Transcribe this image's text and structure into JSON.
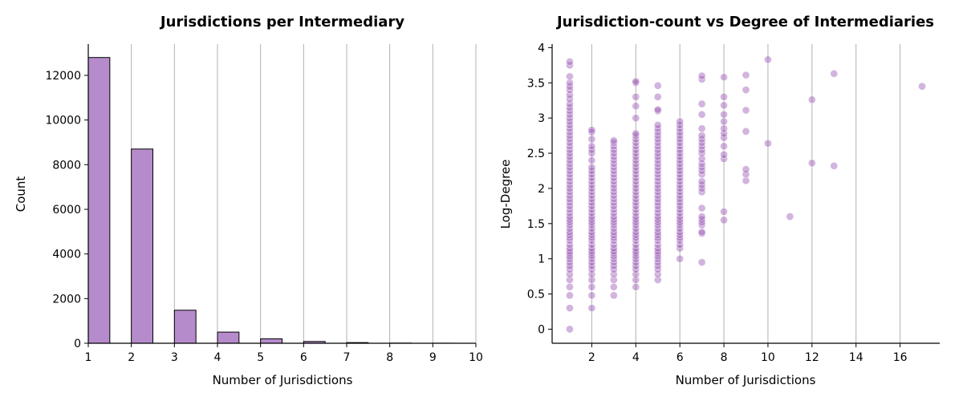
{
  "colors": {
    "bar_fill": "#b68bcb",
    "bar_stroke": "#000000",
    "point_fill": "#9b59b6",
    "grid": "#b0b0b0"
  },
  "chart_data": [
    {
      "type": "bar",
      "title": "Jurisdictions per Intermediary",
      "xlabel": "Number of Jurisdictions",
      "ylabel": "Count",
      "xlim": [
        1,
        10
      ],
      "ylim": [
        0,
        13400
      ],
      "xticks": [
        1,
        2,
        3,
        4,
        5,
        6,
        7,
        8,
        9,
        10
      ],
      "yticks": [
        0,
        2000,
        4000,
        6000,
        8000,
        10000,
        12000
      ],
      "grid": "vertical",
      "bin_width": 0.5,
      "bins": [
        {
          "start": 1,
          "value": 12800
        },
        {
          "start": 2,
          "value": 8700
        },
        {
          "start": 3,
          "value": 1480
        },
        {
          "start": 4,
          "value": 500
        },
        {
          "start": 5,
          "value": 200
        },
        {
          "start": 6,
          "value": 80
        },
        {
          "start": 7,
          "value": 30
        },
        {
          "start": 8,
          "value": 8
        },
        {
          "start": 9,
          "value": 3
        }
      ]
    },
    {
      "type": "scatter",
      "title": "Jurisdiction-count vs Degree of Intermediaries",
      "xlabel": "Number of Jurisdictions",
      "ylabel": "Log-Degree",
      "xlim": [
        0.2,
        17.8
      ],
      "ylim": [
        -0.2,
        4.05
      ],
      "xticks": [
        2,
        4,
        6,
        8,
        10,
        12,
        14,
        16
      ],
      "yticks": [
        0.0,
        0.5,
        1.0,
        1.5,
        2.0,
        2.5,
        3.0,
        3.5,
        4.0
      ],
      "grid": "vertical",
      "points": [
        {
          "x": 1,
          "y": [
            0.0,
            0.3,
            0.48,
            0.6,
            0.7,
            0.78,
            0.85,
            0.9,
            0.95,
            1.0,
            1.04,
            1.08,
            1.11,
            1.15,
            1.2,
            1.26,
            1.3,
            1.34,
            1.38,
            1.43,
            1.48,
            1.52,
            1.56,
            1.6,
            1.65,
            1.7,
            1.75,
            1.8,
            1.85,
            1.9,
            1.95,
            2.0,
            2.05,
            2.1,
            2.15,
            2.2,
            2.25,
            2.3,
            2.35,
            2.4,
            2.45,
            2.5,
            2.55,
            2.6,
            2.65,
            2.7,
            2.75,
            2.8,
            2.85,
            2.9,
            2.95,
            3.0,
            3.05,
            3.1,
            3.15,
            3.2,
            3.27,
            3.33,
            3.4,
            3.45,
            3.5,
            3.59,
            3.75,
            3.8
          ]
        },
        {
          "x": 2,
          "y": [
            0.3,
            0.48,
            0.6,
            0.7,
            0.78,
            0.85,
            0.9,
            0.95,
            1.0,
            1.04,
            1.08,
            1.11,
            1.15,
            1.2,
            1.26,
            1.3,
            1.34,
            1.38,
            1.43,
            1.48,
            1.52,
            1.56,
            1.6,
            1.65,
            1.7,
            1.75,
            1.8,
            1.85,
            1.9,
            1.95,
            2.0,
            2.05,
            2.1,
            2.15,
            2.2,
            2.25,
            2.3,
            2.4,
            2.5,
            2.55,
            2.6,
            2.7,
            2.8,
            2.83
          ]
        },
        {
          "x": 3,
          "y": [
            0.48,
            0.6,
            0.7,
            0.78,
            0.85,
            0.9,
            0.95,
            1.0,
            1.04,
            1.08,
            1.11,
            1.15,
            1.2,
            1.26,
            1.3,
            1.34,
            1.38,
            1.43,
            1.48,
            1.52,
            1.56,
            1.6,
            1.65,
            1.7,
            1.75,
            1.8,
            1.85,
            1.9,
            1.95,
            2.0,
            2.05,
            2.1,
            2.15,
            2.2,
            2.25,
            2.3,
            2.35,
            2.4,
            2.45,
            2.5,
            2.55,
            2.6,
            2.65,
            2.68
          ]
        },
        {
          "x": 4,
          "y": [
            0.6,
            0.7,
            0.78,
            0.85,
            0.9,
            0.95,
            1.0,
            1.04,
            1.08,
            1.11,
            1.15,
            1.2,
            1.26,
            1.3,
            1.34,
            1.38,
            1.43,
            1.48,
            1.52,
            1.56,
            1.6,
            1.65,
            1.7,
            1.75,
            1.8,
            1.85,
            1.9,
            1.95,
            2.0,
            2.05,
            2.1,
            2.15,
            2.2,
            2.25,
            2.3,
            2.35,
            2.4,
            2.45,
            2.5,
            2.55,
            2.6,
            2.65,
            2.7,
            2.75,
            2.78,
            3.0,
            3.17,
            3.3,
            3.5,
            3.52
          ]
        },
        {
          "x": 5,
          "y": [
            0.7,
            0.78,
            0.85,
            0.9,
            0.95,
            1.0,
            1.04,
            1.08,
            1.11,
            1.15,
            1.2,
            1.26,
            1.3,
            1.34,
            1.38,
            1.43,
            1.48,
            1.52,
            1.56,
            1.6,
            1.65,
            1.7,
            1.75,
            1.8,
            1.85,
            1.9,
            1.95,
            2.0,
            2.05,
            2.1,
            2.15,
            2.2,
            2.25,
            2.3,
            2.35,
            2.4,
            2.45,
            2.5,
            2.55,
            2.6,
            2.65,
            2.7,
            2.75,
            2.8,
            2.85,
            2.9,
            3.1,
            3.12,
            3.3,
            3.46
          ]
        },
        {
          "x": 6,
          "y": [
            1.0,
            1.15,
            1.2,
            1.26,
            1.3,
            1.34,
            1.38,
            1.43,
            1.48,
            1.52,
            1.56,
            1.6,
            1.65,
            1.7,
            1.75,
            1.8,
            1.85,
            1.9,
            1.95,
            2.0,
            2.05,
            2.1,
            2.15,
            2.2,
            2.25,
            2.3,
            2.35,
            2.4,
            2.45,
            2.5,
            2.55,
            2.6,
            2.65,
            2.7,
            2.75,
            2.8,
            2.85,
            2.9,
            2.95
          ]
        },
        {
          "x": 7,
          "y": [
            0.95,
            1.36,
            1.38,
            1.48,
            1.52,
            1.56,
            1.6,
            1.72,
            1.95,
            2.0,
            2.05,
            2.1,
            2.2,
            2.25,
            2.3,
            2.35,
            2.42,
            2.5,
            2.55,
            2.6,
            2.65,
            2.7,
            2.75,
            2.85,
            3.05,
            3.2,
            3.55,
            3.6
          ]
        },
        {
          "x": 8,
          "y": [
            1.55,
            1.67,
            2.42,
            2.48,
            2.6,
            2.72,
            2.78,
            2.85,
            2.95,
            3.05,
            3.18,
            3.3,
            3.58
          ]
        },
        {
          "x": 9,
          "y": [
            2.11,
            2.2,
            2.27,
            2.81,
            3.11,
            3.4,
            3.61
          ]
        },
        {
          "x": 10,
          "y": [
            2.64,
            3.83
          ]
        },
        {
          "x": 11,
          "y": [
            1.6
          ]
        },
        {
          "x": 12,
          "y": [
            2.36,
            3.26
          ]
        },
        {
          "x": 13,
          "y": [
            2.32,
            3.63
          ]
        },
        {
          "x": 17,
          "y": [
            3.45
          ]
        }
      ]
    }
  ]
}
